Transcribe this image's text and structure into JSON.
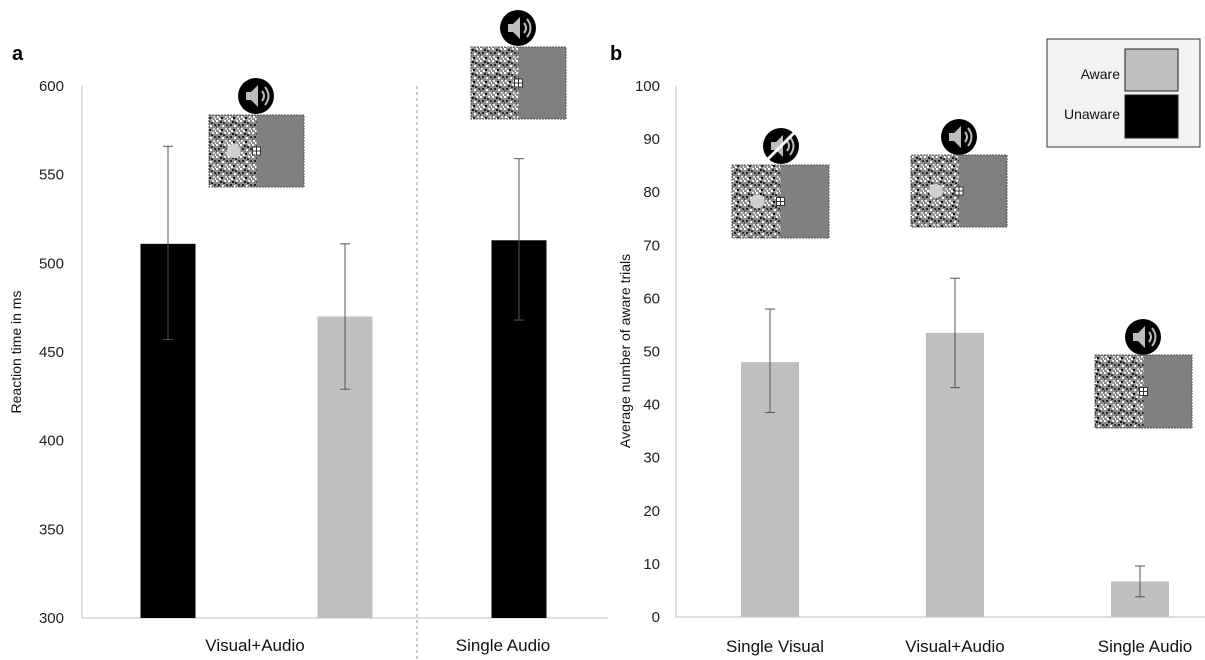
{
  "colors": {
    "aware": "#bfbfbf",
    "unaware": "#000000",
    "axis": "#bfbfbf",
    "error_bar": "#555555",
    "legend_bg": "#f2f2f2"
  },
  "legend": {
    "placement": "top-right",
    "items": [
      {
        "label": "Aware",
        "color": "#bfbfbf"
      },
      {
        "label": "Unaware",
        "color": "#000000"
      }
    ]
  },
  "chart_data": [
    {
      "panel": "a",
      "type": "bar",
      "title": "",
      "xlabel": "",
      "ylabel": "Reaction time in ms",
      "ylim": [
        300,
        600
      ],
      "yticks": [
        300,
        350,
        400,
        450,
        500,
        550,
        600
      ],
      "grid": false,
      "groups": [
        {
          "label": "Visual+Audio",
          "stimulus_icons": [
            "speaker-on-icon",
            "noise-patch-with-target-icon"
          ],
          "bars": [
            {
              "series": "Unaware",
              "value": 511,
              "error": [
                457,
                566
              ],
              "color": "#000000"
            },
            {
              "series": "Aware",
              "value": 470,
              "error": [
                429,
                511
              ],
              "color": "#bfbfbf"
            }
          ]
        },
        {
          "label": "Single Audio",
          "stimulus_icons": [
            "speaker-on-icon",
            "noise-patch-icon"
          ],
          "bars": [
            {
              "series": "Unaware",
              "value": 513,
              "error": [
                468,
                559
              ],
              "color": "#000000"
            }
          ]
        }
      ]
    },
    {
      "panel": "b",
      "type": "bar",
      "title": "",
      "xlabel": "",
      "ylabel": "Average number of aware trials",
      "ylim": [
        0,
        100
      ],
      "yticks": [
        0,
        10,
        20,
        30,
        40,
        50,
        60,
        70,
        80,
        90,
        100
      ],
      "grid": false,
      "categories": [
        "Single Visual",
        "Visual+Audio",
        "Single Audio"
      ],
      "values": [
        48,
        53.5,
        6.7
      ],
      "errors": [
        [
          38.5,
          58
        ],
        [
          43.2,
          63.8
        ],
        [
          3.8,
          9.6
        ]
      ],
      "color": "#bfbfbf",
      "stimulus_icons": [
        [
          "speaker-muted-icon",
          "noise-patch-with-target-icon"
        ],
        [
          "speaker-on-icon",
          "noise-patch-with-target-icon"
        ],
        [
          "speaker-on-icon",
          "noise-patch-icon"
        ]
      ]
    }
  ]
}
